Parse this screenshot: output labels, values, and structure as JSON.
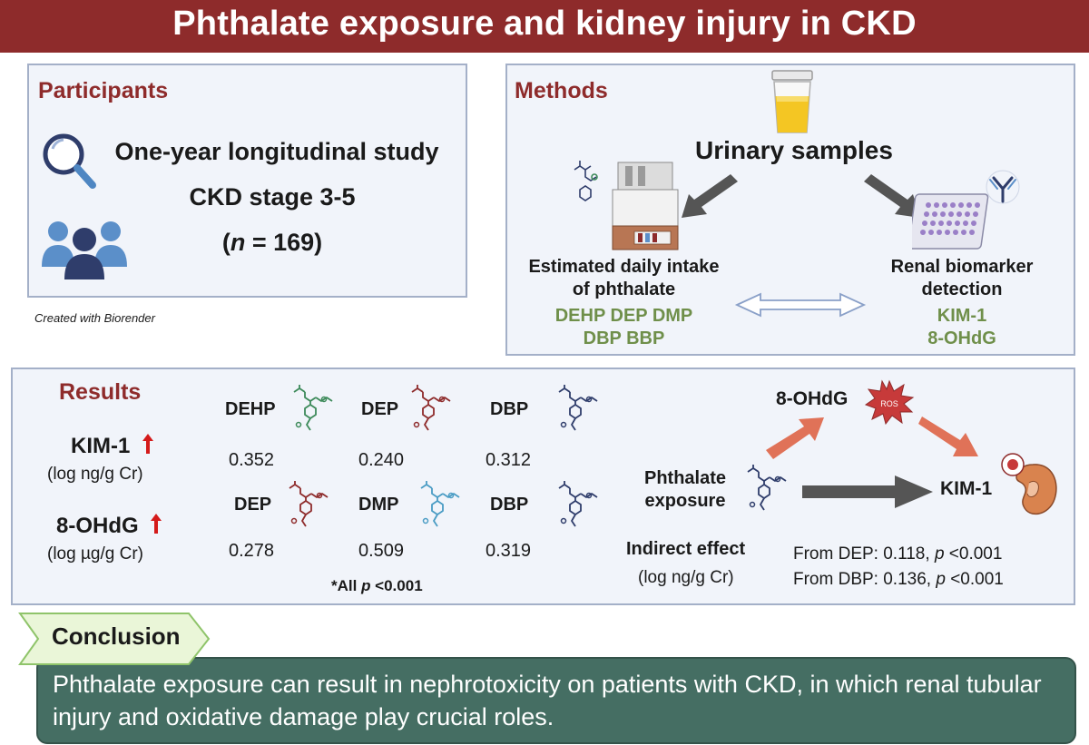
{
  "title": "Phthalate exposure and kidney injury in CKD",
  "participants": {
    "heading": "Participants",
    "study": "One-year longitudinal study",
    "stage": "CKD stage 3-5",
    "n_open": "(",
    "n_symbol": "n",
    "n_rest": " = 169)",
    "credit": "Created with Biorender"
  },
  "methods": {
    "heading": "Methods",
    "urinary": "Urinary samples",
    "edi_line1": "Estimated daily intake",
    "edi_line2": "of phthalate",
    "edi_compounds_line1": "DEHP DEP DMP",
    "edi_compounds_line2": "DBP BBP",
    "biomarker_line1": "Renal biomarker",
    "biomarker_line2": "detection",
    "biomarkers": [
      "KIM-1",
      "8-OHdG"
    ]
  },
  "results": {
    "heading": "Results",
    "kim1": "KIM-1",
    "kim1_unit": "(log ng/g Cr)",
    "ohdg": "8-OHdG",
    "ohdg_unit": "(log µg/g Cr)",
    "kim1_row": [
      {
        "name": "DEHP",
        "value": "0.352",
        "color": "#3d8a5a"
      },
      {
        "name": "DEP",
        "value": "0.240",
        "color": "#8e2b2b"
      },
      {
        "name": "DBP",
        "value": "0.312",
        "color": "#2f3d6b"
      }
    ],
    "ohdg_row": [
      {
        "name": "DEP",
        "value": "0.278",
        "color": "#8e2b2b"
      },
      {
        "name": "DMP",
        "value": "0.509",
        "color": "#4a9cc4"
      },
      {
        "name": "DBP",
        "value": "0.319",
        "color": "#2f3d6b"
      }
    ],
    "footnote_prefix": "*All ",
    "footnote_p": "p",
    "footnote_suffix": " <0.001",
    "pathway": {
      "exposure_line1": "Phthalate",
      "exposure_line2": "exposure",
      "mediator": "8-OHdG",
      "ros": "ROS",
      "outcome": "KIM-1",
      "indirect_title": "Indirect effect",
      "indirect_unit": "(log ng/g Cr)",
      "from_dep_prefix": "From DEP: 0.118, ",
      "from_dbp_prefix": "From DBP: 0.136, ",
      "p_symbol": "p",
      "p_value": " <0.001"
    }
  },
  "conclusion": {
    "label": "Conclusion",
    "text": "Phthalate exposure can result in nephrotoxicity on patients with CKD, in which renal tubular injury and oxidative damage play crucial roles."
  },
  "colors": {
    "title_bar": "#8e2b2b",
    "heading": "#8e2b2b",
    "panel_fill": "#f1f4fa",
    "compound_green": "#6f8f4a",
    "arrow_orange": "#e07258",
    "arrow_gray": "#555555",
    "conclusion_fill": "#456e63",
    "tag_green": "#eaf6d8"
  }
}
